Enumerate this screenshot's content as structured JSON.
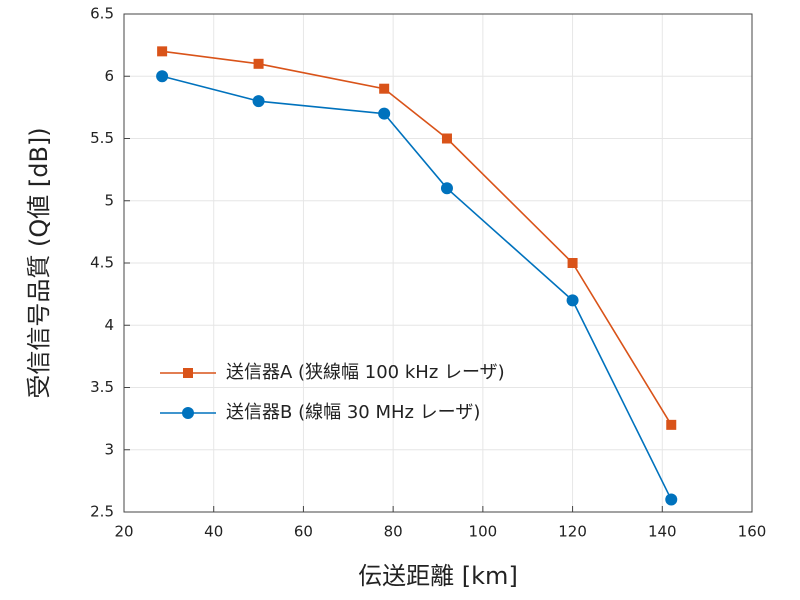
{
  "chart_data": {
    "type": "line",
    "xlabel": "伝送距離 [km]",
    "ylabel": "受信信号品質 (Q値 [dB])",
    "x": [
      28.5,
      50,
      78,
      92,
      120,
      142
    ],
    "series": [
      {
        "name": "送信器A (狭線幅 100 kHz レーザ)",
        "color": "#d95319",
        "marker": "square",
        "values": [
          6.2,
          6.1,
          5.9,
          5.5,
          4.5,
          3.2
        ]
      },
      {
        "name": "送信器B (線幅 30 MHz レーザ)",
        "color": "#0072bd",
        "marker": "circle",
        "values": [
          6.0,
          5.8,
          5.7,
          5.1,
          4.2,
          2.6
        ]
      }
    ],
    "xlim": [
      20,
      160
    ],
    "xticks": [
      20,
      40,
      60,
      80,
      100,
      120,
      140,
      160
    ],
    "ylim": [
      2.5,
      6.5
    ],
    "yticks": [
      2.5,
      3,
      3.5,
      4,
      4.5,
      5,
      5.5,
      6,
      6.5
    ],
    "grid": true,
    "legend_location": "lower left"
  }
}
